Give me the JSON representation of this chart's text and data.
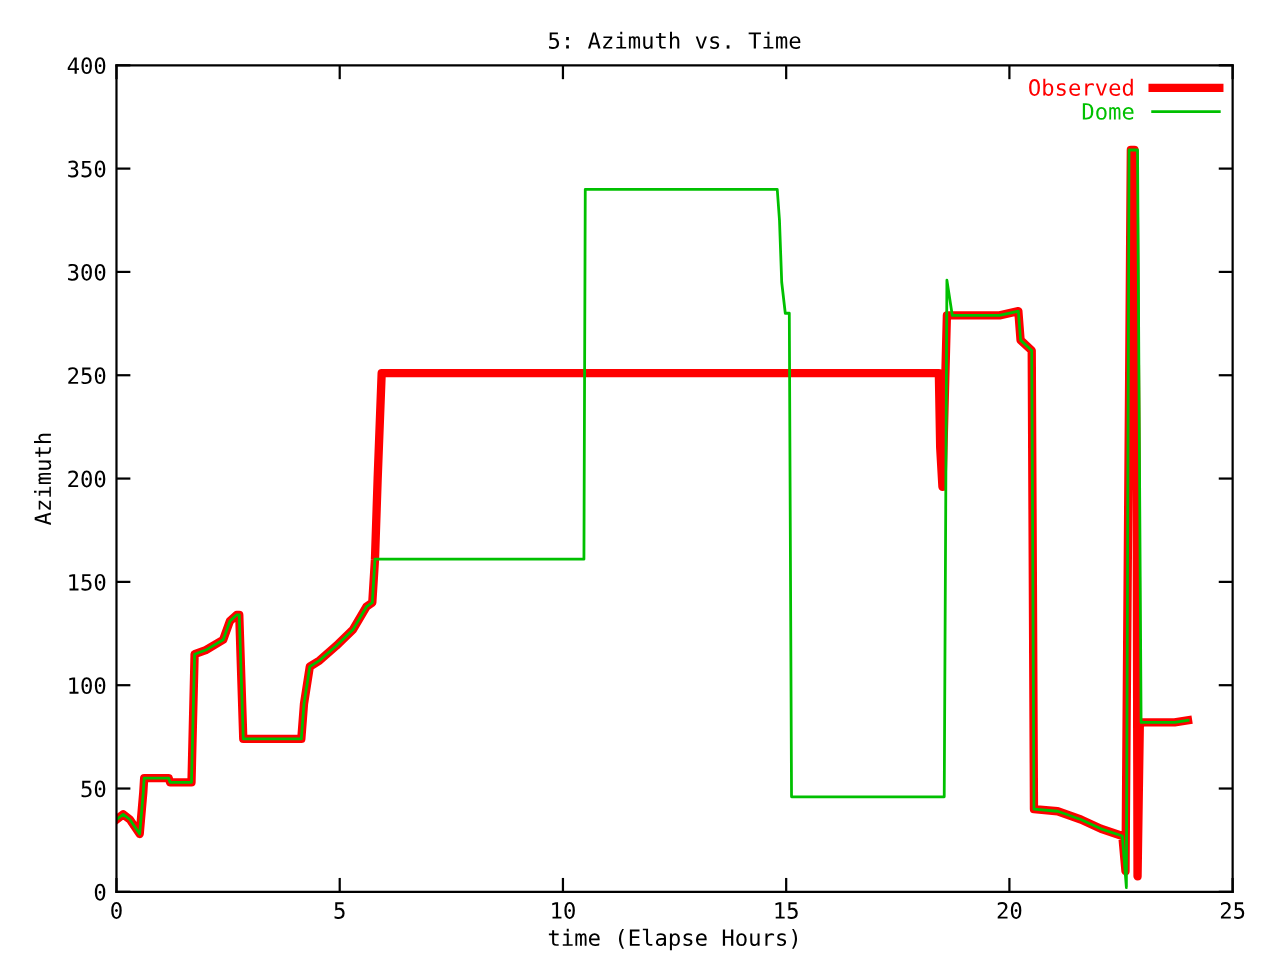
{
  "chart_data": {
    "type": "line",
    "title": "5: Azimuth vs. Time",
    "xlabel": "time (Elapse Hours)",
    "ylabel": "Azimuth",
    "xlim": [
      0,
      25
    ],
    "ylim": [
      0,
      400
    ],
    "xticks": [
      0,
      5,
      10,
      15,
      20,
      25
    ],
    "yticks": [
      0,
      50,
      100,
      150,
      200,
      250,
      300,
      350,
      400
    ],
    "grid": false,
    "legend": "top right",
    "marker": "none",
    "line_style": "solid",
    "series": [
      {
        "name": "Observed",
        "color": "#ff0000",
        "x": [
          0,
          0.15,
          0.3,
          0.52,
          0.6,
          0.62,
          1.17,
          1.2,
          1.68,
          1.75,
          2.0,
          2.39,
          2.54,
          2.69,
          2.75,
          2.84,
          4.14,
          4.2,
          4.33,
          4.55,
          4.92,
          5.3,
          5.6,
          5.73,
          5.79,
          5.85,
          5.94,
          18.42,
          18.45,
          18.5,
          18.6,
          18.72,
          19.78,
          20.2,
          20.25,
          20.5,
          20.55,
          21.08,
          21.6,
          22.05,
          22.53,
          22.6,
          22.72,
          22.8,
          22.85,
          22.87,
          22.92,
          22.95,
          23.7,
          24.0
        ],
        "values": [
          35,
          37.5,
          35,
          28,
          48,
          55,
          55,
          53,
          53,
          115,
          117,
          122,
          131,
          134,
          134,
          74,
          74,
          91,
          109,
          112,
          119,
          127,
          138,
          140,
          161,
          200,
          251,
          251,
          215,
          196,
          279,
          279,
          279,
          281,
          267,
          262,
          40,
          39,
          35,
          30.5,
          27,
          10,
          359,
          359,
          200,
          7.5,
          80,
          82,
          82,
          83
        ]
      },
      {
        "name": "Dome",
        "color": "#00c000",
        "x": [
          0,
          0.15,
          0.3,
          0.52,
          0.6,
          0.62,
          1.17,
          1.2,
          1.68,
          1.75,
          2.0,
          2.39,
          2.54,
          2.69,
          2.75,
          2.84,
          4.14,
          4.2,
          4.33,
          4.55,
          4.92,
          5.3,
          5.6,
          5.73,
          5.79,
          10.47,
          10.5,
          14.8,
          14.85,
          14.9,
          14.98,
          15.07,
          15.12,
          18.54,
          18.6,
          18.72,
          19.78,
          20.2,
          20.25,
          20.5,
          20.55,
          21.08,
          21.6,
          22.05,
          22.53,
          22.62,
          22.68,
          22.87,
          22.95,
          23.7,
          24.0
        ],
        "values": [
          35,
          37.5,
          35,
          28,
          48,
          55,
          55,
          53,
          53,
          115,
          117,
          122,
          131,
          134,
          134,
          74,
          74,
          91,
          109,
          112,
          119,
          127,
          138,
          140,
          161,
          161,
          340,
          340,
          325,
          295,
          280,
          280,
          46,
          46,
          296,
          279,
          279,
          281,
          267,
          262,
          40,
          39,
          35,
          30.5,
          27,
          2,
          359,
          359,
          82,
          82,
          83
        ]
      }
    ]
  }
}
